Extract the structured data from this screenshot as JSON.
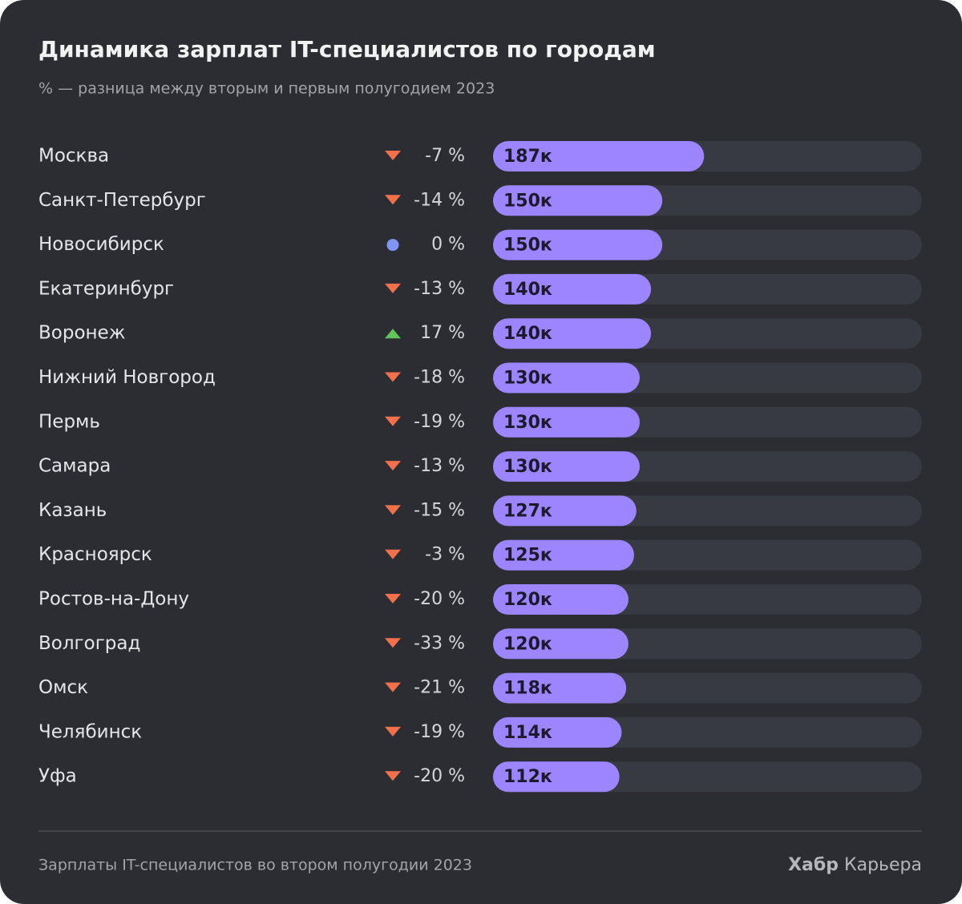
{
  "chart_data": {
    "type": "bar",
    "title": "Динамика зарплат IT-специалистов по городам",
    "subtitle": "% — разница между вторым и первым полугодием 2023",
    "categories": [
      "Москва",
      "Санкт-Петербург",
      "Новосибирск",
      "Екатеринбург",
      "Воронеж",
      "Нижний Новгород",
      "Пермь",
      "Самара",
      "Казань",
      "Красноярск",
      "Ростов-на-Дону",
      "Волгоград",
      "Омск",
      "Челябинск",
      "Уфа"
    ],
    "values": [
      187,
      150,
      150,
      140,
      140,
      130,
      130,
      130,
      127,
      125,
      120,
      120,
      118,
      114,
      112
    ],
    "value_labels": [
      "187к",
      "150к",
      "150к",
      "140к",
      "140к",
      "130к",
      "130к",
      "130к",
      "127к",
      "125к",
      "120к",
      "120к",
      "118к",
      "114к",
      "112к"
    ],
    "color": "#9d85ff",
    "track_color": "#383a42",
    "xlim": [
      0,
      380
    ],
    "changes": {
      "values": [
        -7,
        -14,
        0,
        -13,
        17,
        -18,
        -19,
        -13,
        -15,
        -3,
        -20,
        -33,
        -21,
        -19,
        -20
      ],
      "value_labels": [
        "-7 %",
        "-14 %",
        "0 %",
        "-13 %",
        "17 %",
        "-18 %",
        "-19 %",
        "-13 %",
        "-15 %",
        "-3 %",
        "-20 %",
        "-33 %",
        "-21 %",
        "-19 %",
        "-20 %"
      ],
      "colors": {
        "down": "#f2704a",
        "zero": "#7f96f5",
        "up": "#5fc45a"
      }
    },
    "footnote": "Зарплаты IT-специалистов во втором полугодии 2023",
    "brand_bold": "Хабр",
    "brand": "Карьера"
  }
}
